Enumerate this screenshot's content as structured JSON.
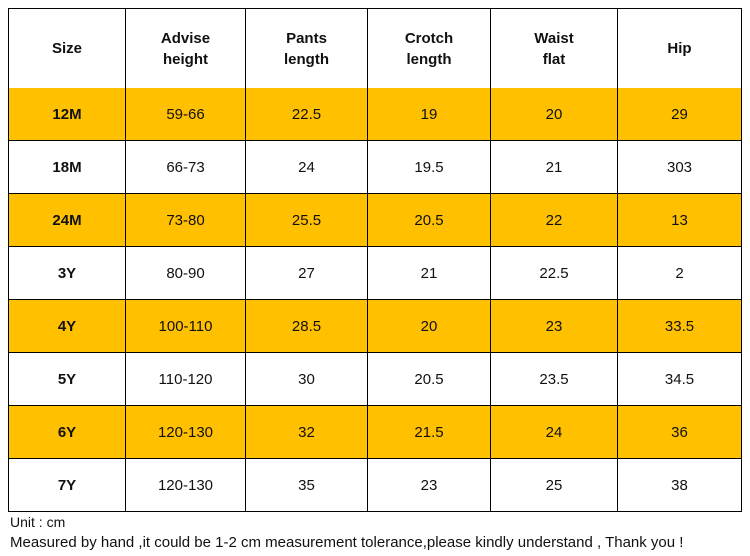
{
  "table": {
    "header": [
      "Size",
      "Advise height",
      "Pants length",
      "Crotch length",
      "Waist flat",
      "Hip"
    ],
    "rows": [
      [
        "12M",
        "59-66",
        "22.5",
        "19",
        "20",
        "29"
      ],
      [
        "18M",
        "66-73",
        "24",
        "19.5",
        "21",
        "303"
      ],
      [
        "24M",
        "73-80",
        "25.5",
        "20.5",
        "22",
        "13"
      ],
      [
        "3Y",
        "80-90",
        "27",
        "21",
        "22.5",
        "2"
      ],
      [
        "4Y",
        "100-110",
        "28.5",
        "20",
        "23",
        "33.5"
      ],
      [
        "5Y",
        "110-120",
        "30",
        "20.5",
        "23.5",
        "34.5"
      ],
      [
        "6Y",
        "120-130",
        "32",
        "21.5",
        "24",
        "36"
      ],
      [
        "7Y",
        "120-130",
        "35",
        "23",
        "25",
        "38"
      ]
    ]
  },
  "notes": {
    "unit": "Unit : cm",
    "disclaimer": "Measured by hand ,it could be 1-2 cm measurement tolerance,please kindly understand , Thank you !"
  }
}
